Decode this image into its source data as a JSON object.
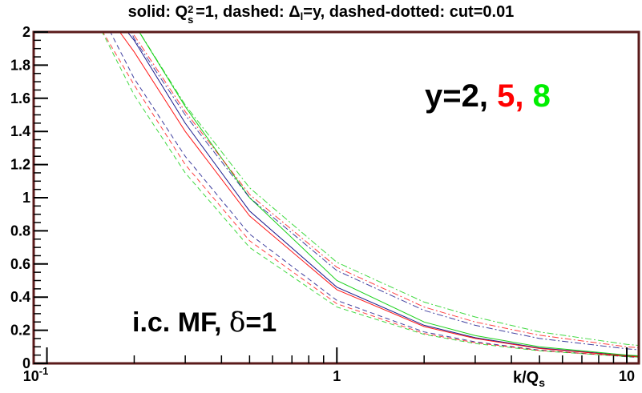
{
  "chart_data": {
    "type": "line",
    "title_parts": {
      "a": "solid: Q",
      "sup": "2",
      "sub": "s",
      "b": "=1, dashed: ",
      "delta": "Δ",
      "sub2": "l",
      "c": "=y, dashed-dotted: cut=0.01"
    },
    "xlabel_main": "k/Q",
    "xlabel_sub": "s",
    "ylabel": "",
    "xscale": "log",
    "xlim": [
      0.09,
      11
    ],
    "ylim": [
      0,
      2
    ],
    "yticks": [
      "0",
      "0.2",
      "0.4",
      "0.6",
      "0.8",
      "1",
      "1.2",
      "1.4",
      "1.6",
      "1.8",
      "2"
    ],
    "xticks": [
      {
        "value": 0.1,
        "base": "10",
        "exp": "-1"
      },
      {
        "value": 1,
        "base": "1",
        "exp": ""
      },
      {
        "value": 10,
        "base": "10",
        "exp": ""
      }
    ],
    "legend_text": {
      "y2": "y=2,",
      "y5": "5,",
      "y8": "8"
    },
    "annotation": {
      "text": "i.c. MF, ",
      "delta": "δ",
      "tail": "=1"
    },
    "colors": {
      "y2": "#000080",
      "y5": "#ff0000",
      "y8": "#00cc00",
      "frame": "#5a1a1a"
    },
    "series": [
      {
        "y": 2,
        "style": "solid",
        "x": [
          0.18,
          0.2,
          0.3,
          0.5,
          1,
          2,
          3,
          5,
          10,
          11
        ],
        "values": [
          2.05,
          1.95,
          1.45,
          0.92,
          0.46,
          0.23,
          0.155,
          0.093,
          0.047,
          0.042
        ]
      },
      {
        "y": 5,
        "style": "solid",
        "x": [
          0.17,
          0.2,
          0.3,
          0.5,
          1,
          2,
          3,
          5,
          10,
          11
        ],
        "values": [
          2.05,
          1.88,
          1.4,
          0.89,
          0.445,
          0.222,
          0.15,
          0.09,
          0.045,
          0.041
        ]
      },
      {
        "y": 8,
        "style": "solid",
        "x": [
          0.2,
          0.3,
          0.5,
          1,
          2,
          3,
          5,
          10,
          11
        ],
        "values": [
          2.05,
          1.55,
          1.0,
          0.5,
          0.25,
          0.168,
          0.1,
          0.05,
          0.046
        ]
      },
      {
        "y": 2,
        "style": "dashed",
        "x": [
          0.16,
          0.2,
          0.3,
          0.5,
          1,
          2,
          3,
          5,
          10,
          11
        ],
        "values": [
          2.05,
          1.72,
          1.25,
          0.78,
          0.38,
          0.19,
          0.13,
          0.08,
          0.04,
          0.036
        ]
      },
      {
        "y": 5,
        "style": "dashed",
        "x": [
          0.15,
          0.2,
          0.3,
          0.5,
          1,
          2,
          3,
          5,
          10,
          11
        ],
        "values": [
          2.05,
          1.68,
          1.2,
          0.74,
          0.36,
          0.18,
          0.125,
          0.078,
          0.042,
          0.038
        ]
      },
      {
        "y": 8,
        "style": "dashed",
        "x": [
          0.15,
          0.2,
          0.3,
          0.5,
          1,
          2,
          3,
          5,
          10,
          11
        ],
        "values": [
          2.05,
          1.62,
          1.15,
          0.7,
          0.34,
          0.175,
          0.12,
          0.076,
          0.041,
          0.037
        ]
      },
      {
        "y": 2,
        "style": "dashdot",
        "x": [
          0.19,
          0.2,
          0.3,
          0.5,
          1,
          2,
          3,
          5,
          10,
          11
        ],
        "values": [
          2.05,
          1.96,
          1.5,
          1.0,
          0.56,
          0.32,
          0.23,
          0.15,
          0.088,
          0.082
        ]
      },
      {
        "y": 5,
        "style": "dashdot",
        "x": [
          0.19,
          0.2,
          0.3,
          0.5,
          1,
          2,
          3,
          5,
          10,
          11
        ],
        "values": [
          2.05,
          1.98,
          1.52,
          1.02,
          0.58,
          0.34,
          0.25,
          0.17,
          0.1,
          0.094
        ]
      },
      {
        "y": 8,
        "style": "dashdot",
        "x": [
          0.2,
          0.3,
          0.5,
          1,
          2,
          3,
          5,
          10,
          11
        ],
        "values": [
          2.05,
          1.56,
          1.06,
          0.61,
          0.37,
          0.28,
          0.19,
          0.115,
          0.108
        ]
      }
    ]
  }
}
